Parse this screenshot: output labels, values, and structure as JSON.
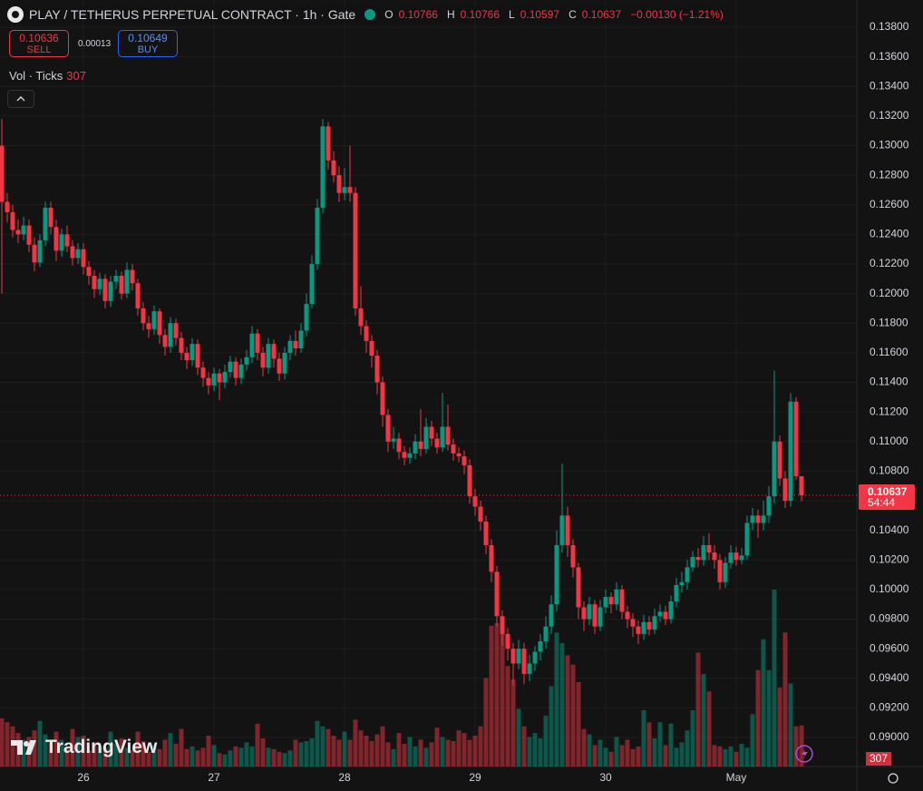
{
  "header": {
    "symbol": "PLAY / TETHERUS PERPETUAL CONTRACT · 1h · Gate",
    "ohlc": [
      {
        "key": "O",
        "value": "0.10766"
      },
      {
        "key": "H",
        "value": "0.10766"
      },
      {
        "key": "L",
        "value": "0.10597"
      },
      {
        "key": "C",
        "value": "0.10637"
      }
    ],
    "change": "−0.00130 (−1.21%)"
  },
  "trade": {
    "sell_price": "0.10636",
    "sell": "SELL",
    "spread": "0.00013",
    "buy_price": "0.10649",
    "buy": "BUY"
  },
  "indicator": {
    "name": "Vol · Ticks",
    "value": "307"
  },
  "price_tag": {
    "price": "0.10637",
    "countdown": "54:44"
  },
  "watermark": "TradingView",
  "chart_data": {
    "type": "candlestick",
    "up_color": "#089981",
    "down_color": "#f23645",
    "grid": true,
    "ylim": [
      0.08804,
      0.13984
    ],
    "yticks": [
      {
        "value": 0.138,
        "label": "0.13800"
      },
      {
        "value": 0.136,
        "label": "0.13600"
      },
      {
        "value": 0.134,
        "label": "0.13400"
      },
      {
        "value": 0.132,
        "label": "0.13200"
      },
      {
        "value": 0.13,
        "label": "0.13000"
      },
      {
        "value": 0.128,
        "label": "0.12800"
      },
      {
        "value": 0.126,
        "label": "0.12600"
      },
      {
        "value": 0.124,
        "label": "0.12400"
      },
      {
        "value": 0.122,
        "label": "0.12200"
      },
      {
        "value": 0.12,
        "label": "0.12000"
      },
      {
        "value": 0.118,
        "label": "0.11800"
      },
      {
        "value": 0.116,
        "label": "0.11600"
      },
      {
        "value": 0.114,
        "label": "0.11400"
      },
      {
        "value": 0.112,
        "label": "0.11200"
      },
      {
        "value": 0.11,
        "label": "0.11000"
      },
      {
        "value": 0.108,
        "label": "0.10800"
      },
      {
        "value": 0.106,
        "label": "0.10600"
      },
      {
        "value": 0.104,
        "label": "0.10400"
      },
      {
        "value": 0.102,
        "label": "0.10200"
      },
      {
        "value": 0.1,
        "label": "0.10000"
      },
      {
        "value": 0.098,
        "label": "0.09800"
      },
      {
        "value": 0.096,
        "label": "0.09600"
      },
      {
        "value": 0.094,
        "label": "0.09400"
      },
      {
        "value": 0.092,
        "label": "0.09200"
      },
      {
        "value": 0.09,
        "label": "0.09000"
      }
    ],
    "categories": [
      null,
      null,
      null,
      null,
      null,
      null,
      null,
      null,
      null,
      null,
      null,
      null,
      null,
      null,
      null,
      "26",
      null,
      null,
      null,
      null,
      null,
      null,
      null,
      null,
      null,
      null,
      null,
      null,
      null,
      null,
      null,
      null,
      null,
      null,
      null,
      null,
      null,
      null,
      null,
      "27",
      null,
      null,
      null,
      null,
      null,
      null,
      null,
      null,
      null,
      null,
      null,
      null,
      null,
      null,
      null,
      null,
      null,
      null,
      null,
      null,
      null,
      null,
      null,
      "28",
      null,
      null,
      null,
      null,
      null,
      null,
      null,
      null,
      null,
      null,
      null,
      null,
      null,
      null,
      null,
      null,
      null,
      null,
      null,
      null,
      null,
      null,
      null,
      "29",
      null,
      null,
      null,
      null,
      null,
      null,
      null,
      null,
      null,
      null,
      null,
      null,
      null,
      null,
      null,
      null,
      null,
      null,
      null,
      null,
      null,
      null,
      null,
      "30",
      null,
      null,
      null,
      null,
      null,
      null,
      null,
      null,
      null,
      null,
      null,
      null,
      null,
      null,
      null,
      null,
      null,
      null,
      null,
      null,
      null,
      null,
      null,
      "May",
      null,
      null,
      null,
      null,
      null,
      null,
      null,
      null,
      null,
      null,
      null,
      null
    ],
    "open": [
      0.13,
      0.1262,
      0.1255,
      0.1243,
      0.124,
      0.1246,
      0.1233,
      0.1221,
      0.1236,
      0.1258,
      0.1245,
      0.1229,
      0.124,
      0.1232,
      0.1224,
      0.123,
      0.1218,
      0.1212,
      0.1203,
      0.121,
      0.1195,
      0.1208,
      0.1212,
      0.12,
      0.1216,
      0.1207,
      0.119,
      0.118,
      0.1176,
      0.1188,
      0.1172,
      0.1164,
      0.118,
      0.117,
      0.116,
      0.1155,
      0.1166,
      0.115,
      0.1143,
      0.1138,
      0.1146,
      0.114,
      0.1147,
      0.1154,
      0.1143,
      0.1152,
      0.1157,
      0.1173,
      0.116,
      0.115,
      0.1166,
      0.1156,
      0.1146,
      0.116,
      0.1168,
      0.1163,
      0.1175,
      0.1193,
      0.122,
      0.1258,
      0.1313,
      0.129,
      0.128,
      0.1268,
      0.1272,
      0.1268,
      0.119,
      0.1178,
      0.1168,
      0.1158,
      0.114,
      0.1118,
      0.11,
      0.1102,
      0.1093,
      0.1089,
      0.1092,
      0.11,
      0.1095,
      0.111,
      0.1102,
      0.1096,
      0.111,
      0.1098,
      0.1092,
      0.109,
      0.1084,
      0.1063,
      0.1056,
      0.1046,
      0.103,
      0.1012,
      0.0982,
      0.097,
      0.096,
      0.095,
      0.096,
      0.0943,
      0.095,
      0.0958,
      0.0965,
      0.0975,
      0.099,
      0.103,
      0.105,
      0.103,
      0.1015,
      0.0988,
      0.098,
      0.099,
      0.0975,
      0.0988,
      0.0995,
      0.099,
      0.1,
      0.0985,
      0.098,
      0.0975,
      0.097,
      0.0978,
      0.0973,
      0.0982,
      0.0985,
      0.098,
      0.0992,
      0.1003,
      0.1005,
      0.1015,
      0.1022,
      0.102,
      0.103,
      0.1025,
      0.102,
      0.1005,
      0.1018,
      0.1025,
      0.102,
      0.1023,
      0.1045,
      0.105,
      0.1045,
      0.105,
      0.1063,
      0.11,
      0.1075,
      0.106,
      0.1127,
      0.10766
    ],
    "high": [
      0.1318,
      0.1268,
      0.126,
      0.125,
      0.1252,
      0.125,
      0.1238,
      0.124,
      0.1262,
      0.1262,
      0.125,
      0.1244,
      0.1246,
      0.1236,
      0.1234,
      0.1234,
      0.1222,
      0.1216,
      0.1214,
      0.1213,
      0.1212,
      0.1216,
      0.1215,
      0.1221,
      0.122,
      0.121,
      0.1194,
      0.1185,
      0.1192,
      0.119,
      0.1176,
      0.1184,
      0.1183,
      0.1174,
      0.1164,
      0.117,
      0.1169,
      0.1154,
      0.1147,
      0.115,
      0.1149,
      0.1152,
      0.1158,
      0.1157,
      0.1156,
      0.1162,
      0.1178,
      0.1176,
      0.1164,
      0.117,
      0.1169,
      0.116,
      0.1164,
      0.1172,
      0.1175,
      0.118,
      0.12,
      0.1226,
      0.1264,
      0.1318,
      0.1316,
      0.1296,
      0.1286,
      0.1285,
      0.13,
      0.1272,
      0.1205,
      0.1182,
      0.1172,
      0.1162,
      0.1144,
      0.1122,
      0.111,
      0.1106,
      0.1097,
      0.1096,
      0.1105,
      0.1122,
      0.1116,
      0.1114,
      0.1106,
      0.1133,
      0.1125,
      0.1102,
      0.1096,
      0.1094,
      0.1088,
      0.1068,
      0.106,
      0.105,
      0.1034,
      0.1016,
      0.0986,
      0.0974,
      0.0964,
      0.0966,
      0.0964,
      0.0956,
      0.0962,
      0.097,
      0.0982,
      0.0996,
      0.104,
      0.1085,
      0.1056,
      0.1034,
      0.1018,
      0.0992,
      0.0995,
      0.0993,
      0.0993,
      0.1,
      0.0998,
      0.1005,
      0.1003,
      0.0989,
      0.0984,
      0.0979,
      0.0983,
      0.0982,
      0.0987,
      0.099,
      0.0989,
      0.0996,
      0.1008,
      0.1012,
      0.102,
      0.1026,
      0.1028,
      0.1036,
      0.1038,
      0.103,
      0.1024,
      0.1022,
      0.103,
      0.1029,
      0.1028,
      0.105,
      0.1055,
      0.1054,
      0.106,
      0.107,
      0.1148,
      0.1104,
      0.108,
      0.1133,
      0.113,
      0.10766
    ],
    "low": [
      0.12,
      0.1248,
      0.1238,
      0.1234,
      0.1236,
      0.1228,
      0.1215,
      0.1218,
      0.1232,
      0.124,
      0.1222,
      0.1225,
      0.1228,
      0.1219,
      0.122,
      0.1213,
      0.1206,
      0.1197,
      0.1199,
      0.119,
      0.1191,
      0.1203,
      0.1196,
      0.1197,
      0.1202,
      0.1185,
      0.1175,
      0.117,
      0.1172,
      0.1166,
      0.1158,
      0.116,
      0.1165,
      0.1155,
      0.1149,
      0.1151,
      0.1145,
      0.1137,
      0.1132,
      0.1134,
      0.1128,
      0.1136,
      0.1143,
      0.1138,
      0.1139,
      0.1148,
      0.1153,
      0.1155,
      0.1144,
      0.1146,
      0.115,
      0.1141,
      0.1142,
      0.1155,
      0.1158,
      0.116,
      0.1171,
      0.119,
      0.1216,
      0.1254,
      0.1284,
      0.1275,
      0.1262,
      0.1263,
      0.1262,
      0.1185,
      0.1172,
      0.116,
      0.115,
      0.1132,
      0.111,
      0.1093,
      0.1095,
      0.1088,
      0.1084,
      0.1085,
      0.1088,
      0.109,
      0.1092,
      0.1097,
      0.1092,
      0.1093,
      0.1094,
      0.1087,
      0.1086,
      0.1078,
      0.1058,
      0.105,
      0.104,
      0.1024,
      0.1005,
      0.0975,
      0.0962,
      0.0952,
      0.0935,
      0.0946,
      0.0936,
      0.0938,
      0.0945,
      0.0952,
      0.096,
      0.097,
      0.0985,
      0.1025,
      0.1022,
      0.1008,
      0.098,
      0.0972,
      0.0976,
      0.097,
      0.0972,
      0.0984,
      0.0984,
      0.0986,
      0.098,
      0.0974,
      0.0968,
      0.0963,
      0.0966,
      0.0969,
      0.097,
      0.0978,
      0.0976,
      0.0977,
      0.0988,
      0.0998,
      0.1,
      0.1012,
      0.1015,
      0.1016,
      0.102,
      0.1014,
      0.1,
      0.1001,
      0.1014,
      0.1016,
      0.1017,
      0.102,
      0.104,
      0.1035,
      0.104,
      0.1045,
      0.1058,
      0.107,
      0.1055,
      0.1056,
      0.1074,
      0.10597
    ],
    "close": [
      0.1262,
      0.1255,
      0.1243,
      0.124,
      0.1246,
      0.1233,
      0.1221,
      0.1236,
      0.1258,
      0.1245,
      0.1229,
      0.124,
      0.1232,
      0.1224,
      0.123,
      0.1218,
      0.1212,
      0.1203,
      0.121,
      0.1195,
      0.1208,
      0.1212,
      0.12,
      0.1216,
      0.1207,
      0.119,
      0.118,
      0.1176,
      0.1188,
      0.1172,
      0.1164,
      0.118,
      0.117,
      0.116,
      0.1155,
      0.1166,
      0.115,
      0.1143,
      0.1138,
      0.1146,
      0.114,
      0.1147,
      0.1154,
      0.1143,
      0.1152,
      0.1157,
      0.1173,
      0.116,
      0.115,
      0.1166,
      0.1156,
      0.1146,
      0.116,
      0.1168,
      0.1163,
      0.1175,
      0.1193,
      0.122,
      0.1258,
      0.1313,
      0.129,
      0.128,
      0.1268,
      0.1272,
      0.1268,
      0.119,
      0.1178,
      0.1168,
      0.1158,
      0.114,
      0.1118,
      0.11,
      0.1102,
      0.1093,
      0.1089,
      0.1092,
      0.11,
      0.1095,
      0.111,
      0.1102,
      0.1096,
      0.111,
      0.1098,
      0.1092,
      0.109,
      0.1084,
      0.1063,
      0.1056,
      0.1046,
      0.103,
      0.1012,
      0.0982,
      0.097,
      0.096,
      0.095,
      0.096,
      0.0943,
      0.095,
      0.0958,
      0.0965,
      0.0975,
      0.099,
      0.103,
      0.105,
      0.103,
      0.1015,
      0.0988,
      0.098,
      0.099,
      0.0975,
      0.0988,
      0.0995,
      0.099,
      0.1,
      0.0985,
      0.098,
      0.0975,
      0.097,
      0.0978,
      0.0973,
      0.0982,
      0.0985,
      0.098,
      0.0992,
      0.1003,
      0.1005,
      0.1015,
      0.1022,
      0.102,
      0.103,
      0.1025,
      0.102,
      0.1005,
      0.1018,
      0.1025,
      0.102,
      0.1023,
      0.1045,
      0.105,
      0.1045,
      0.105,
      0.1063,
      0.11,
      0.1075,
      0.106,
      0.1127,
      0.10766,
      0.10637
    ],
    "volume": [
      360,
      330,
      300,
      250,
      200,
      220,
      270,
      340,
      240,
      180,
      260,
      200,
      150,
      280,
      220,
      230,
      120,
      180,
      150,
      140,
      260,
      170,
      210,
      140,
      120,
      260,
      190,
      110,
      160,
      130,
      200,
      250,
      170,
      280,
      130,
      150,
      120,
      140,
      230,
      160,
      100,
      90,
      120,
      150,
      140,
      180,
      150,
      320,
      210,
      140,
      130,
      110,
      100,
      120,
      200,
      180,
      190,
      210,
      340,
      300,
      280,
      230,
      200,
      260,
      200,
      350,
      270,
      230,
      190,
      240,
      300,
      180,
      130,
      250,
      170,
      220,
      150,
      200,
      140,
      180,
      290,
      220,
      200,
      190,
      270,
      250,
      200,
      230,
      300,
      660,
      1050,
      1070,
      1000,
      750,
      650,
      430,
      300,
      220,
      250,
      210,
      380,
      600,
      1000,
      920,
      830,
      760,
      630,
      280,
      240,
      160,
      200,
      140,
      110,
      220,
      160,
      200,
      130,
      150,
      420,
      330,
      210,
      330,
      160,
      320,
      140,
      180,
      270,
      420,
      850,
      690,
      560,
      160,
      150,
      130,
      150,
      110,
      170,
      140,
      390,
      720,
      950,
      720,
      1320,
      590,
      1000,
      620,
      300,
      307
    ]
  }
}
